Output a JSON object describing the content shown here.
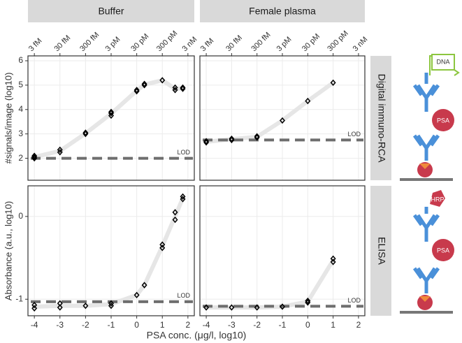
{
  "facets": {
    "columns": [
      "Buffer",
      "Female plasma"
    ],
    "rows": [
      "Digital immuno-RCA",
      "ELISA"
    ]
  },
  "xlabel": "PSA conc. (μg/l, log10)",
  "diagram": {
    "rca": {
      "tag": "DNA",
      "antigen": "PSA"
    },
    "elisa": {
      "tag": "HRP",
      "antigen": "PSA"
    }
  },
  "chart_data": [
    {
      "type": "scatter",
      "ylabel": "#signals/image (log10)",
      "grid": true,
      "point_color": "#000000",
      "fit_color": "#e6e6e6",
      "lod_color": "#6e6e6e",
      "xlim": [
        -4.25,
        2.25
      ],
      "ylim": [
        1.1,
        6.2
      ],
      "xticks": [
        -4,
        -3,
        -2,
        -1,
        0,
        1,
        2
      ],
      "yticks": [
        2,
        3,
        4,
        5,
        6
      ],
      "x2ticks": [
        {
          "value": -4,
          "label": "3 fM"
        },
        {
          "value": -3,
          "label": "30 fM"
        },
        {
          "value": -2,
          "label": "300 fM"
        },
        {
          "value": -1,
          "label": "3 pM"
        },
        {
          "value": 0,
          "label": "30 pM"
        },
        {
          "value": 1,
          "label": "300 pM"
        },
        {
          "value": 2,
          "label": "3 nM"
        }
      ],
      "x": [
        -4,
        -4,
        -4,
        -3,
        -3,
        -2,
        -2,
        -1,
        -1,
        -1,
        0,
        0,
        0.3,
        0.3,
        1,
        1.5,
        1.5,
        1.8,
        1.8
      ],
      "y": [
        2.0,
        2.05,
        2.1,
        2.25,
        2.35,
        3.0,
        3.05,
        3.75,
        3.85,
        3.9,
        4.75,
        4.8,
        5.0,
        5.05,
        5.2,
        4.8,
        4.9,
        4.85,
        4.9
      ],
      "fit": {
        "x": [
          -4,
          -3,
          -2,
          -1,
          0,
          0.3,
          1,
          1.5,
          1.8
        ],
        "y": [
          2.05,
          2.3,
          3.02,
          3.83,
          4.77,
          5.02,
          5.2,
          4.85,
          4.87
        ]
      },
      "lod": {
        "value": 2.0,
        "label": "LOD"
      }
    },
    {
      "type": "scatter",
      "grid": true,
      "point_color": "#000000",
      "fit_color": "#e6e6e6",
      "lod_color": "#6e6e6e",
      "xlim": [
        -4.25,
        2.25
      ],
      "ylim": [
        1.1,
        6.2
      ],
      "xticks": [
        -4,
        -3,
        -2,
        -1,
        0,
        1,
        2
      ],
      "yticks": [
        2,
        3,
        4,
        5,
        6
      ],
      "x2ticks": [
        {
          "value": -4,
          "label": "3 fM"
        },
        {
          "value": -3,
          "label": "30 fM"
        },
        {
          "value": -2,
          "label": "300 fM"
        },
        {
          "value": -1,
          "label": "3 pM"
        },
        {
          "value": 0,
          "label": "30 pM"
        },
        {
          "value": 1,
          "label": "300 pM"
        },
        {
          "value": 2,
          "label": "3 nM"
        }
      ],
      "x": [
        -4,
        -4,
        -3,
        -3,
        -2,
        -2,
        -1,
        0,
        1
      ],
      "y": [
        2.65,
        2.7,
        2.75,
        2.8,
        2.85,
        2.9,
        3.55,
        4.35,
        5.1
      ],
      "fit": {
        "x": [
          -4,
          -3,
          -2,
          -1,
          0,
          1
        ],
        "y": [
          2.68,
          2.78,
          2.88,
          3.55,
          4.35,
          5.1
        ]
      },
      "lod": {
        "value": 2.75,
        "label": "LOD"
      }
    },
    {
      "type": "scatter",
      "ylabel": "Absorbance (a.u., log10)",
      "grid": true,
      "point_color": "#000000",
      "fit_color": "#e6e6e6",
      "lod_color": "#6e6e6e",
      "xlim": [
        -4.25,
        2.25
      ],
      "ylim": [
        -1.2,
        0.37
      ],
      "xticks": [
        -4,
        -3,
        -2,
        -1,
        0,
        1,
        2
      ],
      "yticks": [
        -1,
        0
      ],
      "x": [
        -4,
        -4,
        -3,
        -3,
        -2,
        -1,
        -1,
        0,
        0.3,
        1,
        1,
        1.5,
        1.5,
        1.8,
        1.8
      ],
      "y": [
        -1.07,
        -1.11,
        -1.05,
        -1.1,
        -1.08,
        -1.05,
        -1.08,
        -0.95,
        -0.83,
        -0.34,
        -0.38,
        -0.04,
        0.05,
        0.24,
        0.21
      ],
      "fit": {
        "x": [
          -4,
          -3,
          -2,
          -1,
          0,
          0.3,
          1,
          1.5,
          1.8
        ],
        "y": [
          -1.09,
          -1.08,
          -1.08,
          -1.06,
          -0.95,
          -0.83,
          -0.36,
          0.0,
          0.22
        ]
      },
      "lod": {
        "value": -1.03,
        "label": "LOD"
      }
    },
    {
      "type": "scatter",
      "grid": true,
      "point_color": "#000000",
      "fit_color": "#e6e6e6",
      "lod_color": "#6e6e6e",
      "xlim": [
        -4.25,
        2.25
      ],
      "ylim": [
        -1.2,
        0.37
      ],
      "xticks": [
        -4,
        -3,
        -2,
        -1,
        0,
        1,
        2
      ],
      "yticks": [
        -1,
        0
      ],
      "x": [
        -4,
        -3,
        -2,
        -1,
        0,
        0,
        1,
        1
      ],
      "y": [
        -1.1,
        -1.1,
        -1.1,
        -1.09,
        -1.02,
        -1.04,
        -0.51,
        -0.55
      ],
      "fit": {
        "x": [
          -4,
          -3,
          -2,
          -1,
          0,
          1
        ],
        "y": [
          -1.1,
          -1.1,
          -1.1,
          -1.09,
          -1.03,
          -0.53
        ]
      },
      "lod": {
        "value": -1.085,
        "label": "LOD"
      }
    }
  ]
}
